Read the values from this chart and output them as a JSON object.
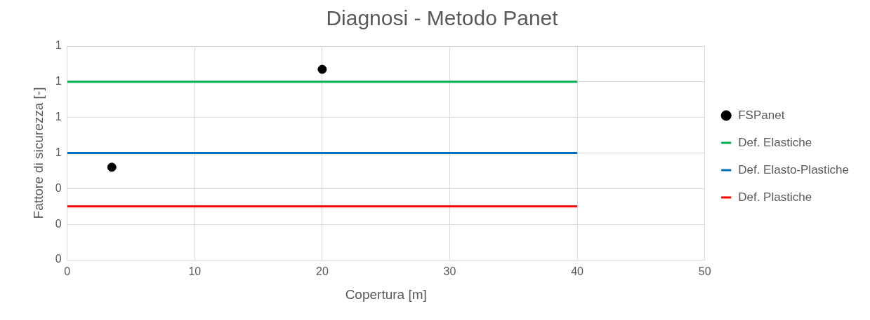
{
  "chart_data": {
    "type": "scatter",
    "title": "Diagnosi - Metodo Panet",
    "xlabel": "Copertura [m]",
    "ylabel": "Fattore di sicurezza [-]",
    "xlim": [
      0,
      50
    ],
    "xticks": [
      0,
      10,
      20,
      30,
      40,
      50
    ],
    "ylim": [
      0,
      1.2
    ],
    "yticks": [
      {
        "value": 0,
        "label": "0"
      },
      {
        "value": 0.2,
        "label": "0"
      },
      {
        "value": 0.4,
        "label": "0"
      },
      {
        "value": 0.6,
        "label": "1"
      },
      {
        "value": 0.8,
        "label": "1"
      },
      {
        "value": 1.0,
        "label": "1"
      },
      {
        "value": 1.2,
        "label": "1"
      }
    ],
    "grid": true,
    "legend": "right",
    "series": [
      {
        "name": "FSPanet",
        "type": "scatter",
        "marker": "circle",
        "color": "#000000",
        "x": [
          3.5,
          20
        ],
        "values": [
          0.52,
          1.07
        ]
      },
      {
        "name": "Def. Elastiche",
        "type": "line",
        "marker": "none",
        "color": "#00b050",
        "x": [
          0,
          40
        ],
        "values": [
          1.0,
          1.0
        ]
      },
      {
        "name": "Def. Elasto-Plastiche",
        "type": "line",
        "marker": "none",
        "color": "#0070c0",
        "x": [
          0,
          40
        ],
        "values": [
          0.6,
          0.6
        ]
      },
      {
        "name": "Def. Plastiche",
        "type": "line",
        "marker": "none",
        "color": "#ff0000",
        "x": [
          0,
          40
        ],
        "values": [
          0.3,
          0.3
        ]
      }
    ]
  }
}
